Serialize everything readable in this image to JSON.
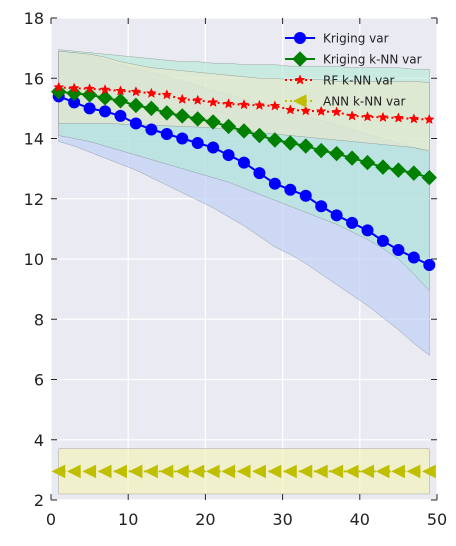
{
  "chart_data": {
    "type": "line",
    "title": "",
    "xlabel": "",
    "ylabel": "",
    "xlim": [
      0,
      50
    ],
    "ylim": [
      2,
      18
    ],
    "xticks": [
      0,
      10,
      20,
      30,
      40,
      50
    ],
    "yticks": [
      2,
      4,
      6,
      8,
      10,
      12,
      14,
      16,
      18
    ],
    "grid": true,
    "legend_position": "top-right",
    "x": [
      1,
      3,
      5,
      7,
      9,
      11,
      13,
      15,
      17,
      19,
      21,
      23,
      25,
      27,
      29,
      31,
      33,
      35,
      37,
      39,
      41,
      43,
      45,
      47,
      49
    ],
    "series": [
      {
        "name": "Kriging var",
        "color": "#0000ff",
        "marker": "circle",
        "linestyle": "solid",
        "values": [
          15.4,
          15.2,
          15.0,
          14.9,
          14.75,
          14.5,
          14.3,
          14.15,
          14.0,
          13.85,
          13.7,
          13.45,
          13.2,
          12.85,
          12.5,
          12.3,
          12.1,
          11.75,
          11.45,
          11.2,
          10.95,
          10.6,
          10.3,
          10.05,
          9.8
        ],
        "band": {
          "color": "#b7ccf5",
          "lower": [
            13.9,
            13.75,
            13.55,
            13.35,
            13.15,
            12.95,
            12.7,
            12.45,
            12.2,
            11.95,
            11.7,
            11.4,
            11.1,
            10.75,
            10.4,
            10.15,
            9.85,
            9.5,
            9.15,
            8.8,
            8.45,
            8.05,
            7.65,
            7.2,
            6.8
          ],
          "upper": [
            16.9,
            16.85,
            16.75,
            16.6,
            16.45,
            16.3,
            16.2,
            16.05,
            15.9,
            15.75,
            15.6,
            15.45,
            15.3,
            15.15,
            15.0,
            14.85,
            14.75,
            14.6,
            14.45,
            14.3,
            14.15,
            14.0,
            13.85,
            13.7,
            13.55
          ]
        }
      },
      {
        "name": "Kriging k-NN var",
        "color": "#008000",
        "marker": "diamond",
        "linestyle": "solid",
        "values": [
          15.55,
          15.5,
          15.45,
          15.35,
          15.25,
          15.1,
          15.0,
          14.85,
          14.75,
          14.65,
          14.55,
          14.4,
          14.25,
          14.1,
          13.95,
          13.85,
          13.75,
          13.6,
          13.5,
          13.35,
          13.2,
          13.05,
          12.95,
          12.85,
          12.7
        ],
        "band": {
          "color": "#b2ead6",
          "lower": [
            14.1,
            14.0,
            13.9,
            13.75,
            13.6,
            13.45,
            13.3,
            13.15,
            13.0,
            12.85,
            12.7,
            12.55,
            12.35,
            12.15,
            11.95,
            11.75,
            11.55,
            11.35,
            11.15,
            10.9,
            10.65,
            10.35,
            10.0,
            9.5,
            8.95
          ],
          "upper": [
            16.95,
            16.9,
            16.85,
            16.8,
            16.75,
            16.7,
            16.65,
            16.6,
            16.55,
            16.55,
            16.5,
            16.5,
            16.45,
            16.45,
            16.45,
            16.4,
            16.4,
            16.4,
            16.4,
            16.35,
            16.35,
            16.35,
            16.35,
            16.3,
            16.3
          ]
        }
      },
      {
        "name": "RF k-NN var",
        "color": "#ff0000",
        "marker": "star",
        "linestyle": "dotted",
        "values": [
          15.7,
          15.67,
          15.65,
          15.62,
          15.58,
          15.55,
          15.5,
          15.45,
          15.3,
          15.27,
          15.2,
          15.15,
          15.12,
          15.1,
          15.08,
          14.95,
          14.92,
          14.9,
          14.88,
          14.75,
          14.72,
          14.7,
          14.68,
          14.65,
          14.63
        ],
        "band": {
          "color": "#ece7c9",
          "lower": [
            14.5,
            14.5,
            14.5,
            14.5,
            14.48,
            14.45,
            14.45,
            14.42,
            14.4,
            14.38,
            14.35,
            14.3,
            14.25,
            14.2,
            14.15,
            14.1,
            14.05,
            14.0,
            13.95,
            13.9,
            13.85,
            13.8,
            13.75,
            13.7,
            13.6
          ],
          "upper": [
            16.9,
            16.85,
            16.8,
            16.7,
            16.55,
            16.45,
            16.35,
            16.3,
            16.25,
            16.2,
            16.15,
            16.1,
            16.05,
            16.0,
            16.0,
            15.95,
            15.95,
            15.95,
            15.9,
            15.9,
            15.9,
            15.9,
            15.9,
            15.9,
            15.85
          ]
        }
      },
      {
        "name": "ANN k-NN var",
        "color": "#bfbf00",
        "marker": "triangle-left",
        "linestyle": "dotted",
        "values": [
          2.95,
          2.95,
          2.95,
          2.95,
          2.95,
          2.95,
          2.95,
          2.95,
          2.95,
          2.95,
          2.95,
          2.95,
          2.95,
          2.95,
          2.95,
          2.95,
          2.95,
          2.95,
          2.95,
          2.95,
          2.95,
          2.95,
          2.95,
          2.95,
          2.95
        ],
        "band": {
          "color": "#f3f4b4",
          "lower": [
            2.2,
            2.2,
            2.2,
            2.2,
            2.2,
            2.2,
            2.2,
            2.2,
            2.2,
            2.2,
            2.2,
            2.2,
            2.2,
            2.2,
            2.2,
            2.2,
            2.2,
            2.2,
            2.2,
            2.2,
            2.2,
            2.2,
            2.2,
            2.2,
            2.2
          ],
          "upper": [
            3.7,
            3.7,
            3.7,
            3.7,
            3.7,
            3.7,
            3.7,
            3.7,
            3.7,
            3.7,
            3.7,
            3.7,
            3.7,
            3.7,
            3.7,
            3.7,
            3.7,
            3.7,
            3.7,
            3.7,
            3.7,
            3.7,
            3.7,
            3.7,
            3.7
          ]
        }
      }
    ]
  }
}
